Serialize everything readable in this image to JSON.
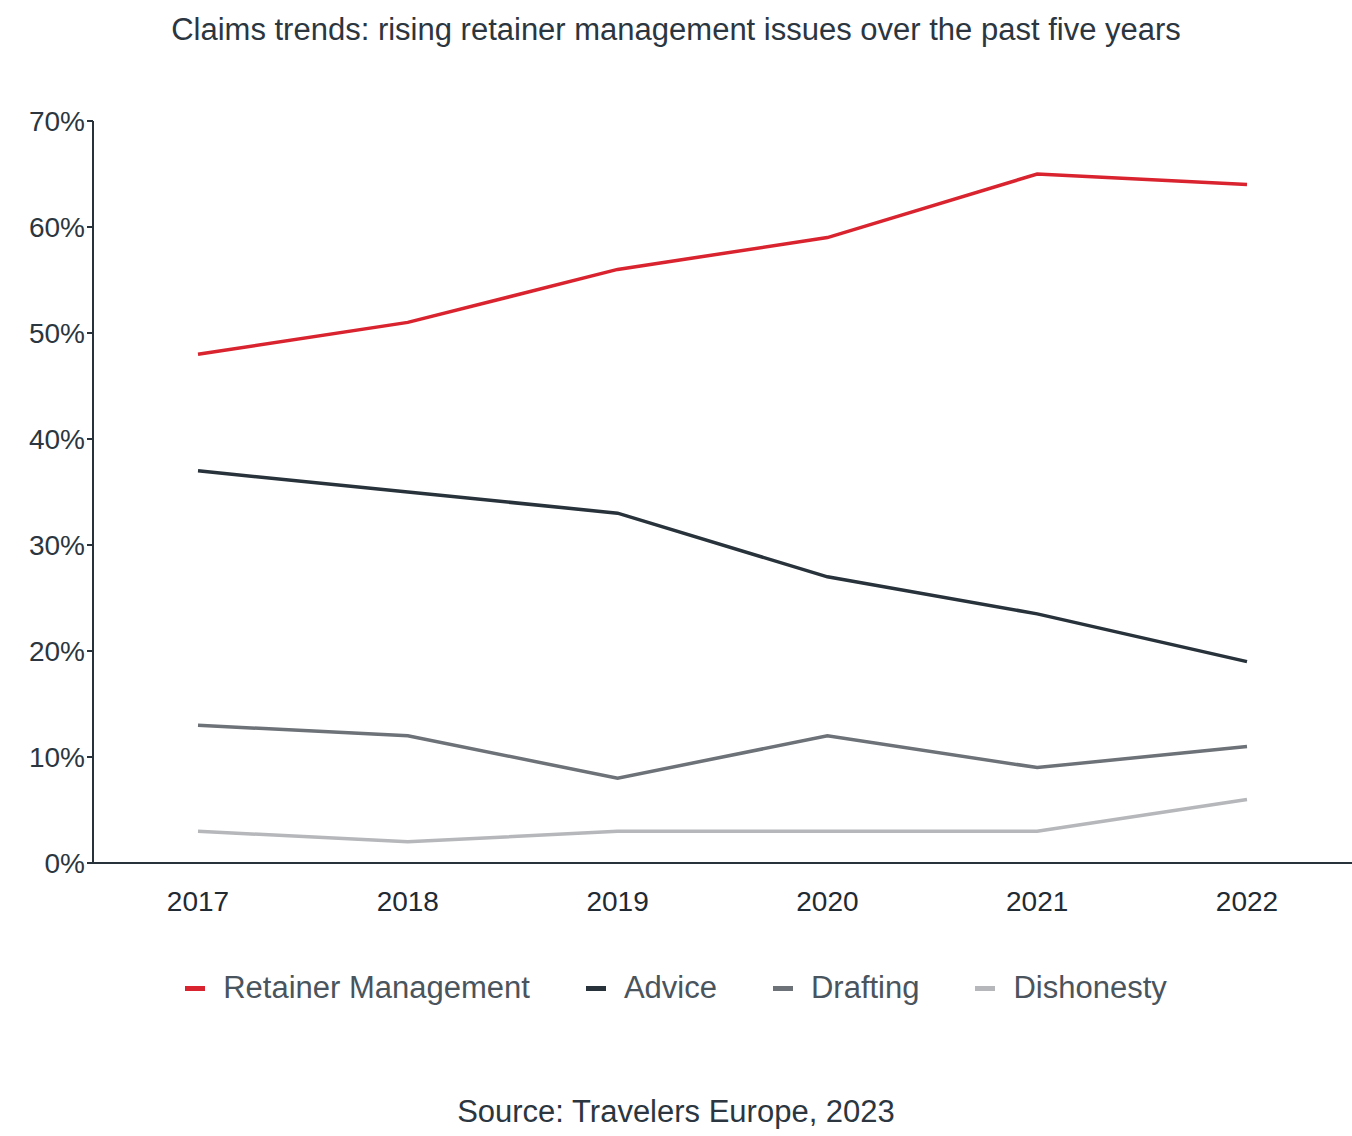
{
  "chart_data": {
    "type": "line",
    "title": "Claims trends: rising retainer management issues over the past five years",
    "source": "Source: Travelers Europe, 2023",
    "categories": [
      "2017",
      "2018",
      "2019",
      "2020",
      "2021",
      "2022"
    ],
    "series": [
      {
        "name": "Retainer Management",
        "color": "#d9232e",
        "values": [
          48,
          51,
          56,
          59,
          65,
          64
        ]
      },
      {
        "name": "Advice",
        "color": "#27323a",
        "values": [
          37,
          35,
          33,
          27,
          23.5,
          19
        ]
      },
      {
        "name": "Drafting",
        "color": "#6d7278",
        "values": [
          13,
          12,
          8,
          12,
          9,
          11
        ]
      },
      {
        "name": "Dishonesty",
        "color": "#b5b7ba",
        "values": [
          3,
          2,
          3,
          3,
          3,
          6
        ]
      }
    ],
    "ylim": [
      0,
      70
    ],
    "yticks": [
      {
        "value": 0,
        "label": "0%"
      },
      {
        "value": 10,
        "label": "10%"
      },
      {
        "value": 20,
        "label": "20%"
      },
      {
        "value": 30,
        "label": "30%"
      },
      {
        "value": 40,
        "label": "40%"
      },
      {
        "value": 50,
        "label": "50%"
      },
      {
        "value": 60,
        "label": "60%"
      },
      {
        "value": 70,
        "label": "70%"
      }
    ],
    "grid": false,
    "legend": "bottom"
  }
}
